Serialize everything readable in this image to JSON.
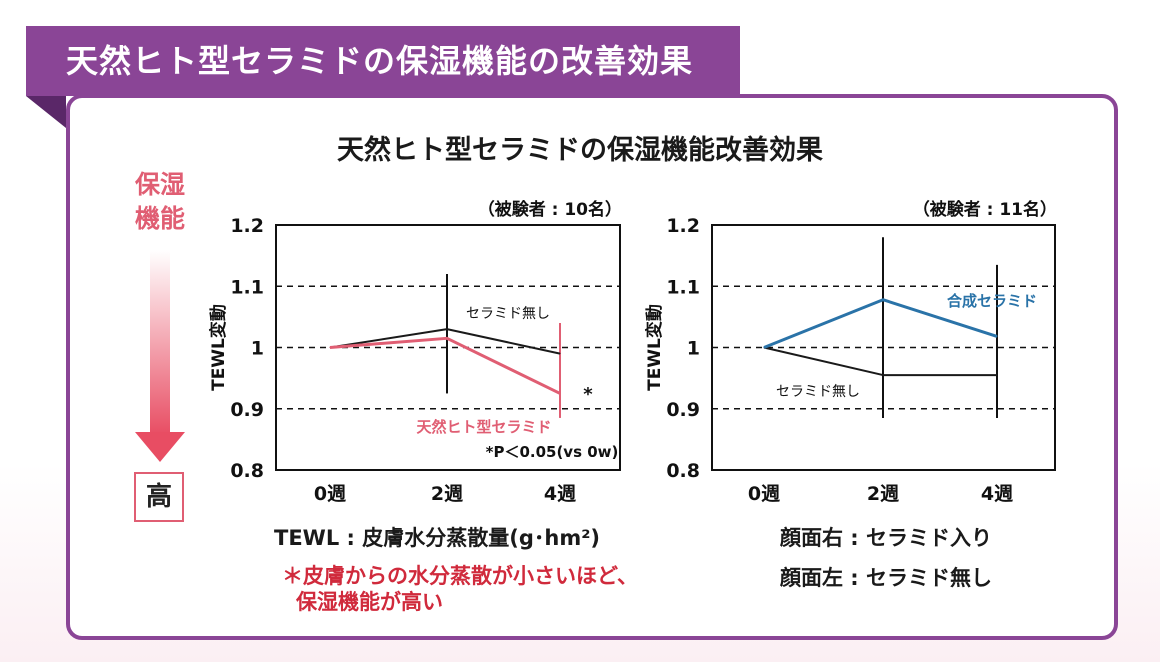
{
  "header": {
    "title": "天然ヒト型セラミドの保湿機能の改善効果"
  },
  "figure_title": "天然ヒト型セラミドの保湿機能改善効果",
  "indicator": {
    "label_line1": "保湿",
    "label_line2": "機能",
    "high_label": "高"
  },
  "notes": {
    "tewl_definition": "TEWL : 皮膚水分蒸散量(g･hm²)",
    "red_note_line1": "＊皮膚からの水分蒸散が小さいほど、",
    "red_note_line2": "保湿機能が高い",
    "right_face": "顔面右 : セラミド入り",
    "left_face": "顔面左 : セラミド無し"
  },
  "colors": {
    "banner": "#8a4596",
    "accent_red": "#e05e73",
    "accent_blue": "#2a73a8"
  },
  "chart_data": [
    {
      "type": "line",
      "subject_count": "（被験者 : 10名）",
      "ylabel": "TEWL変動",
      "ylim": [
        0.8,
        1.2
      ],
      "yticks": [
        "1.2",
        "1.1",
        "1",
        "0.9",
        "0.8"
      ],
      "ytick_values": [
        1.2,
        1.1,
        1.0,
        0.9,
        0.8
      ],
      "gridlines": [
        1.1,
        1.0,
        0.9
      ],
      "categories": [
        "0週",
        "2週",
        "4週"
      ],
      "series": [
        {
          "name": "セラミド無し",
          "color": "#1a1a1a",
          "values": [
            1.0,
            1.03,
            0.99
          ],
          "error_bars": [
            null,
            [
              0.925,
              1.12
            ],
            null
          ]
        },
        {
          "name": "天然ヒト型セラミド",
          "color": "#e05e73",
          "values": [
            1.0,
            1.015,
            0.925
          ],
          "error_bars": [
            null,
            null,
            [
              0.885,
              1.04
            ]
          ]
        }
      ],
      "annotations": {
        "significance_marker": "*",
        "significance_note": "*P＜0.05(vs 0w)"
      }
    },
    {
      "type": "line",
      "subject_count": "（被験者 : 11名）",
      "ylabel": "TEWL変動",
      "ylim": [
        0.8,
        1.2
      ],
      "yticks": [
        "1.2",
        "1.1",
        "1",
        "0.9",
        "0.8"
      ],
      "ytick_values": [
        1.2,
        1.1,
        1.0,
        0.9,
        0.8
      ],
      "gridlines": [
        1.1,
        1.0,
        0.9
      ],
      "categories": [
        "0週",
        "2週",
        "4週"
      ],
      "series": [
        {
          "name": "合成セラミド",
          "color": "#2a73a8",
          "values": [
            1.0,
            1.078,
            1.018
          ],
          "error_bars": [
            null,
            [
              0.885,
              1.18
            ],
            [
              0.885,
              1.135
            ]
          ]
        },
        {
          "name": "セラミド無し",
          "color": "#1a1a1a",
          "values": [
            1.0,
            0.955,
            0.955
          ],
          "error_bars": [
            null,
            null,
            null
          ]
        }
      ]
    }
  ]
}
